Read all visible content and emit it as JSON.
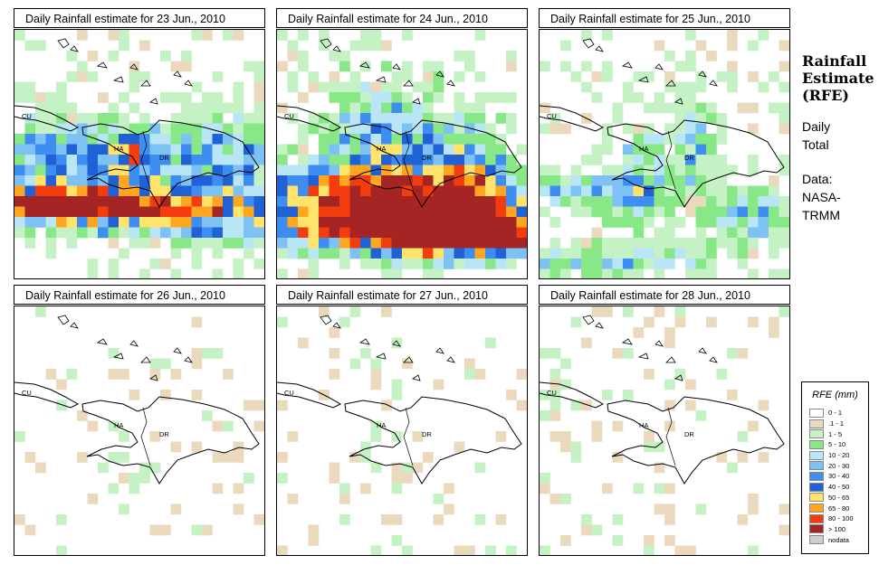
{
  "panels": [
    {
      "title": "Daily Rainfall estimate for  23 Jun., 2010",
      "intensity": 1.0,
      "seed": 11,
      "blobs": [
        [
          0.08,
          0.72,
          0.45,
          0.06
        ],
        [
          0.36,
          0.68,
          0.55,
          0.08
        ],
        [
          0.82,
          0.76,
          0.6,
          0.1
        ],
        [
          0.46,
          0.5,
          0.16,
          0.12
        ],
        [
          0.85,
          0.5,
          0.25,
          0.16
        ],
        [
          0.15,
          0.52,
          0.25,
          0.18
        ]
      ]
    },
    {
      "title": "Daily Rainfall estimate for  24 Jun., 2010",
      "intensity": 1.0,
      "seed": 23,
      "blobs": [
        [
          0.05,
          0.62,
          0.45,
          0.08
        ],
        [
          0.3,
          0.78,
          0.55,
          0.1
        ],
        [
          0.55,
          0.8,
          0.5,
          0.12
        ],
        [
          0.72,
          0.7,
          0.45,
          0.12
        ],
        [
          0.9,
          0.85,
          0.4,
          0.08
        ],
        [
          0.4,
          0.45,
          0.22,
          0.25
        ],
        [
          0.75,
          0.55,
          0.2,
          0.2
        ]
      ]
    },
    {
      "title": "Daily Rainfall estimate for  25 Jun., 2010",
      "intensity": 0.8,
      "seed": 37,
      "blobs": [
        [
          0.18,
          0.93,
          0.55,
          0.06
        ],
        [
          0.15,
          0.65,
          0.28,
          0.08
        ],
        [
          0.88,
          0.75,
          0.25,
          0.12
        ],
        [
          0.4,
          0.6,
          0.12,
          0.22
        ],
        [
          0.62,
          0.45,
          0.1,
          0.2
        ]
      ]
    },
    {
      "title": "Daily Rainfall estimate for  26 Jun., 2010",
      "intensity": 0.2,
      "seed": 41,
      "blobs": [
        [
          0.4,
          0.55,
          0.13,
          0.18
        ],
        [
          0.5,
          0.7,
          0.08,
          0.15
        ]
      ]
    },
    {
      "title": "Daily Rainfall estimate for  27 Jun., 2010",
      "intensity": 0.2,
      "seed": 53,
      "blobs": [
        [
          0.55,
          0.62,
          0.12,
          0.2
        ],
        [
          0.42,
          0.5,
          0.08,
          0.18
        ]
      ]
    },
    {
      "title": "Daily Rainfall estimate for  28 Jun., 2010",
      "intensity": 0.18,
      "seed": 67,
      "blobs": [
        [
          0.5,
          0.5,
          0.15,
          0.2
        ],
        [
          0.08,
          0.35,
          0.08,
          0.15
        ],
        [
          0.03,
          0.95,
          0.05,
          0.15
        ]
      ]
    }
  ],
  "map_labels": {
    "cuba": "CU",
    "haiti": "HA",
    "dominican_republic": "DR"
  },
  "side": {
    "title_lines": [
      "Rainfall",
      "Estimate",
      "(RFE)"
    ],
    "daily_lines": [
      "Daily",
      "Total"
    ],
    "source_lines": [
      "Data:",
      "NASA-",
      "TRMM"
    ]
  },
  "legend": {
    "title": "RFE (mm)",
    "items": [
      {
        "label": "0 - 1",
        "color": "#ffffff"
      },
      {
        "label": ".1 - 1",
        "color": "#ebd9be"
      },
      {
        "label": "1 - 5",
        "color": "#c5f2c5"
      },
      {
        "label": "5 - 10",
        "color": "#88e888"
      },
      {
        "label": "10 - 20",
        "color": "#b9e6f7"
      },
      {
        "label": "20 - 30",
        "color": "#7ec1f5"
      },
      {
        "label": "30 - 40",
        "color": "#3d8ef0"
      },
      {
        "label": "40 - 50",
        "color": "#2161d6"
      },
      {
        "label": "50 - 65",
        "color": "#ffe36a"
      },
      {
        "label": "65 - 80",
        "color": "#ffa620"
      },
      {
        "label": "80 - 100",
        "color": "#f43d0e"
      },
      {
        "label": "> 100",
        "color": "#a52525"
      },
      {
        "label": "nodata",
        "color": "#cfcfcf"
      }
    ]
  }
}
